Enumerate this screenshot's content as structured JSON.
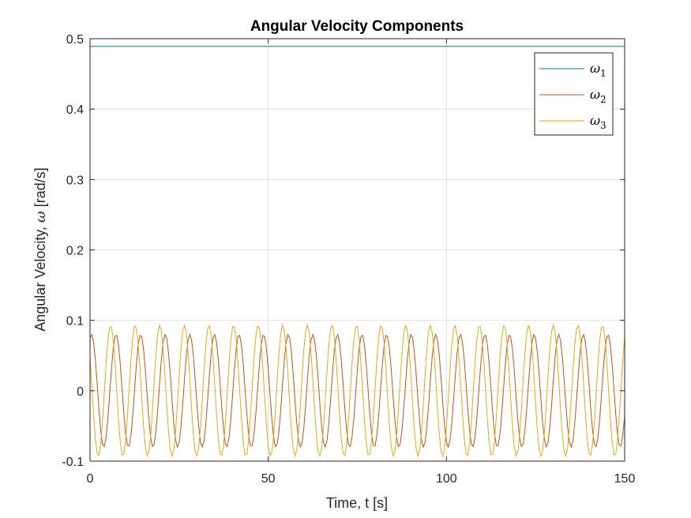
{
  "chart_data": {
    "type": "line",
    "title": "Angular Velocity Components",
    "xlabel": "Time, t [s]",
    "ylabel_prefix": "Angular Velocity, ",
    "ylabel_symbol": "ω",
    "ylabel_suffix": " [rad/s]",
    "xlim": [
      0,
      150
    ],
    "ylim": [
      -0.1,
      0.5
    ],
    "xticks": [
      0,
      50,
      100,
      150
    ],
    "xtick_labels": [
      "0",
      "50",
      "100",
      "150"
    ],
    "yticks": [
      -0.1,
      0,
      0.1,
      0.2,
      0.3,
      0.4,
      0.5
    ],
    "ytick_labels": [
      "-0.1",
      "0",
      "0.1",
      "0.2",
      "0.3",
      "0.4",
      "0.5"
    ],
    "grid": true,
    "legend_position": "top-right",
    "series": [
      {
        "name": "ω",
        "subscript": "1",
        "color": "#0e7f7a",
        "kind": "constant",
        "value": 0.489
      },
      {
        "name": "ω",
        "subscript": "2",
        "color": "#c0531a",
        "kind": "oscillation",
        "amplitude": 0.08,
        "offset": 0.0,
        "period": 6.9,
        "phase": 1.2
      },
      {
        "name": "ω",
        "subscript": "3",
        "color": "#e6a817",
        "kind": "oscillation",
        "amplitude": 0.093,
        "offset": 0.0,
        "period": 6.9,
        "phase": 2.6
      }
    ]
  }
}
